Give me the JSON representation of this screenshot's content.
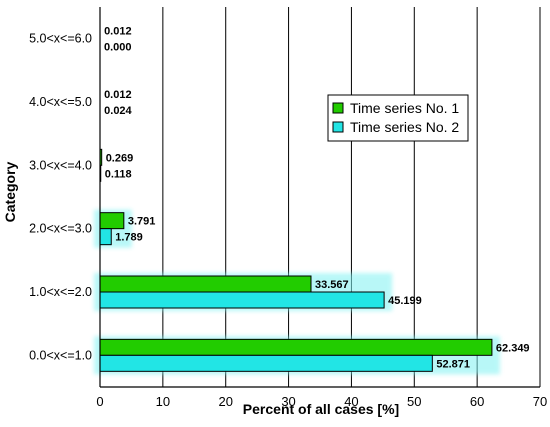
{
  "chart_data": {
    "type": "bar",
    "orientation": "horizontal",
    "categories": [
      "0.0<x<=1.0",
      "1.0<x<=2.0",
      "2.0<x<=3.0",
      "3.0<x<=4.0",
      "4.0<x<=5.0",
      "5.0<x<=6.0"
    ],
    "series": [
      {
        "name": "Time series No. 1",
        "color": "#22cc00",
        "values": [
          62.349,
          33.567,
          3.791,
          0.269,
          0.012,
          0.012
        ],
        "labels": [
          "62.349",
          "33.567",
          "3.791",
          "0.269",
          "0.012",
          "0.012"
        ]
      },
      {
        "name": "Time series No. 2",
        "color": "#22e5e5",
        "values": [
          52.871,
          45.199,
          1.789,
          0.118,
          0.024,
          0.0
        ],
        "labels": [
          "52.871",
          "45.199",
          "1.789",
          "0.118",
          "0.024",
          "0.000"
        ]
      }
    ],
    "xlabel": "Percent of all cases [%]",
    "ylabel": "Category",
    "xlim": [
      0,
      70
    ],
    "xticks": [
      "0",
      "10",
      "20",
      "30",
      "40",
      "50",
      "60",
      "70"
    ],
    "grid": "vertical",
    "legend_position": "right-middle"
  }
}
